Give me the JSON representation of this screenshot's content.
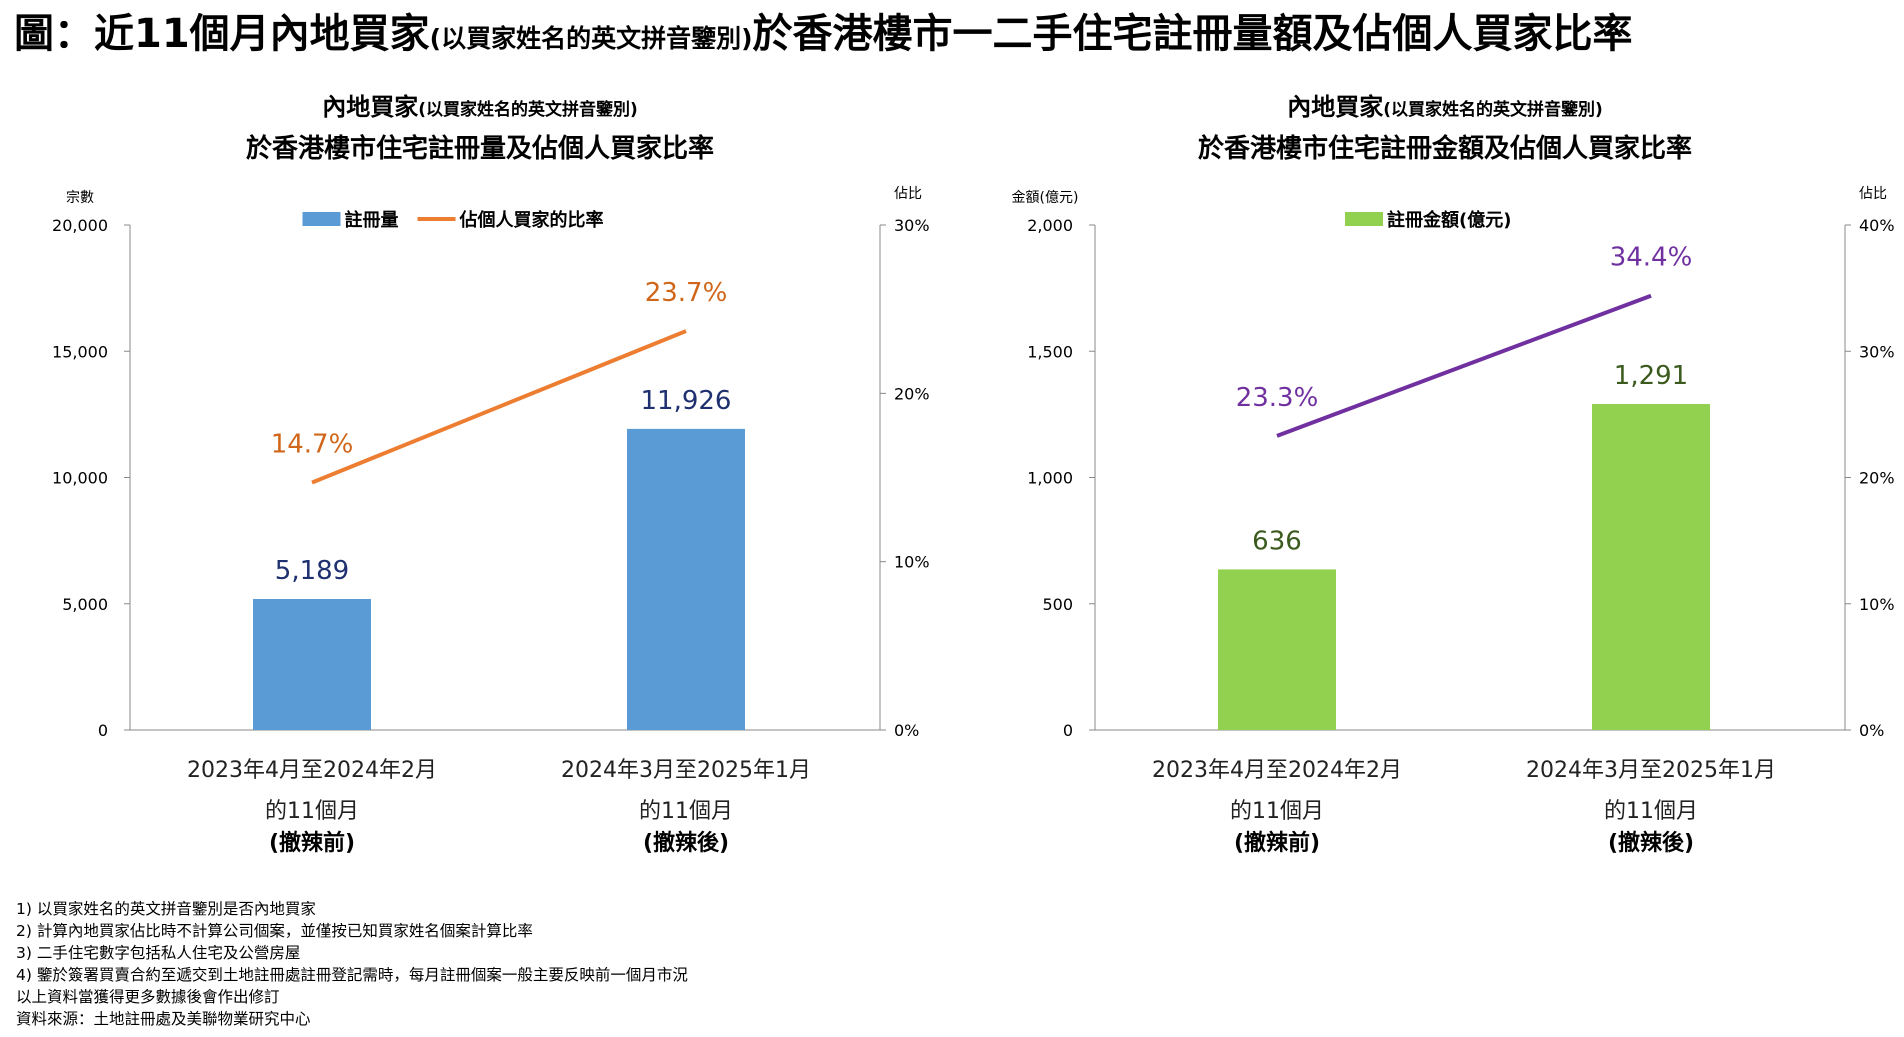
{
  "main_title": {
    "main_a": "圖：近11個月內地買家",
    "small": "(以買家姓名的英文拼音鑒別)",
    "main_b": "於香港樓市一二手住宅註冊量額及佔個人買家比率"
  },
  "chart_data": [
    {
      "type": "bar",
      "title_line1_main": "內地買家",
      "title_line1_small": "(以買家姓名的英文拼音鑒別)",
      "title_line2": "於香港樓市住宅註冊量及佔個人買家比率",
      "ylabel_left": "宗數",
      "ylabel_right": "佔比",
      "ylim_left": [
        0,
        20000
      ],
      "yticks_left": [
        "0",
        "5,000",
        "10,000",
        "15,000",
        "20,000"
      ],
      "ylim_right": [
        0,
        30
      ],
      "yticks_right": [
        "0%",
        "10%",
        "20%",
        "30%"
      ],
      "categories": [
        {
          "line1": "2023年4月至2024年2月",
          "line2": "的11個月",
          "line3": "(撤辣前)"
        },
        {
          "line1": "2024年3月至2025年1月",
          "line2": "的11個月",
          "line3": "(撤辣後)"
        }
      ],
      "series": [
        {
          "name": "註冊量",
          "axis": "left",
          "kind": "bar",
          "color": "#5b9bd5",
          "label_color": "#1f3070",
          "values": [
            5189,
            11926
          ],
          "labels": [
            "5,189",
            "11,926"
          ]
        },
        {
          "name": "佔個人買家的比率",
          "axis": "right",
          "kind": "line",
          "color": "#ed7d31",
          "label_color": "#d0661a",
          "values": [
            14.7,
            23.7
          ],
          "labels": [
            "14.7%",
            "23.7%"
          ]
        }
      ],
      "legend": "top"
    },
    {
      "type": "bar",
      "title_line1_main": "內地買家",
      "title_line1_small": "(以買家姓名的英文拼音鑒別)",
      "title_line2": "於香港樓市住宅註冊金額及佔個人買家比率",
      "ylabel_left": "金額(億元)",
      "ylabel_right": "佔比",
      "ylim_left": [
        0,
        2000
      ],
      "yticks_left": [
        "0",
        "500",
        "1,000",
        "1,500",
        "2,000"
      ],
      "ylim_right": [
        0,
        40
      ],
      "yticks_right": [
        "0%",
        "10%",
        "20%",
        "30%",
        "40%"
      ],
      "categories": [
        {
          "line1": "2023年4月至2024年2月",
          "line2": "的11個月",
          "line3": "(撤辣前)"
        },
        {
          "line1": "2024年3月至2025年1月",
          "line2": "的11個月",
          "line3": "(撤辣後)"
        }
      ],
      "series": [
        {
          "name": "註冊金額(億元)",
          "axis": "left",
          "kind": "bar",
          "color": "#92d050",
          "label_color": "#3b5a1e",
          "values": [
            636,
            1291
          ],
          "labels": [
            "636",
            "1,291"
          ]
        },
        {
          "name": "",
          "axis": "right",
          "kind": "line",
          "color": "#7030a0",
          "label_color": "#7030a0",
          "values": [
            23.3,
            34.4
          ],
          "labels": [
            "23.3%",
            "34.4%"
          ]
        }
      ],
      "legend": "top"
    }
  ],
  "notes": [
    "1) 以買家姓名的英文拼音鑒別是否內地買家",
    "2) 計算內地買家佔比時不計算公司個案，並僅按已知買家姓名個案計算比率",
    "3) 二手住宅數字包括私人住宅及公營房屋",
    "4) 鑒於簽署買賣合約至遞交到土地註冊處註冊登記需時，每月註冊個案一般主要反映前一個月市況",
    "以上資料當獲得更多數據後會作出修訂",
    "資料來源：土地註冊處及美聯物業研究中心"
  ]
}
